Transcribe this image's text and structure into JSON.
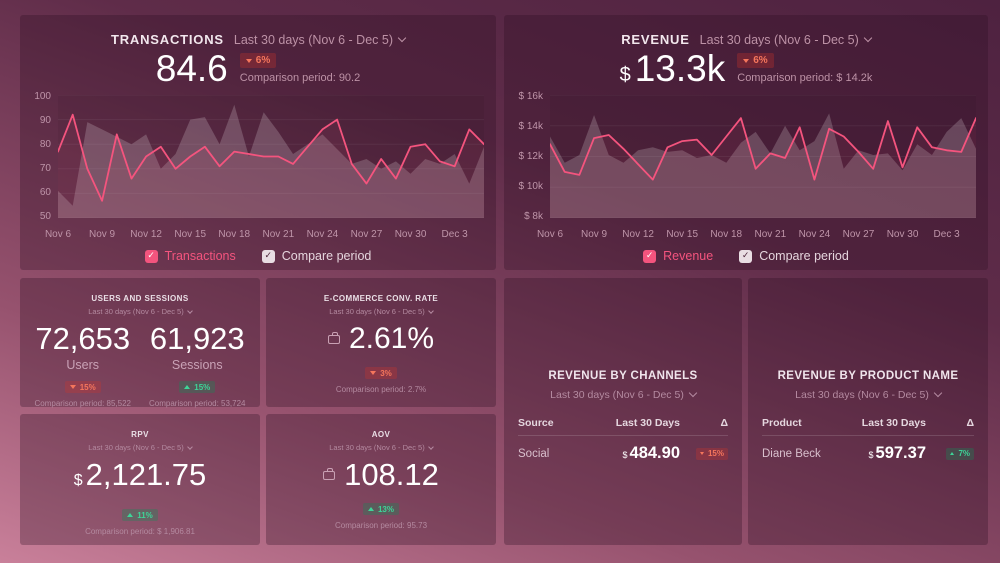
{
  "colors": {
    "line_pink": "#f4547e",
    "compare_fill": "rgba(232,221,229,0.22)",
    "badge_red_text": "#f5765c",
    "badge_green_text": "#3ed598",
    "panel_bg": "rgba(43,13,33,0.30)",
    "background_top": "#4e2240",
    "background_bottom": "#c9809a"
  },
  "panels": {
    "transactions": {
      "title": "TRANSACTIONS",
      "period": "Last 30 days (Nov 6 - Dec 5)",
      "value": "84.6",
      "delta": "6%",
      "delta_dir": "down",
      "comparison": "Comparison period: 90.2",
      "legend": [
        {
          "label": "Transactions"
        },
        {
          "label": "Compare period"
        }
      ]
    },
    "revenue": {
      "title": "REVENUE",
      "period": "Last 30 days (Nov 6 - Dec 5)",
      "currency": "$",
      "value": "13.3k",
      "delta": "6%",
      "delta_dir": "down",
      "comparison": "Comparison period: $ 14.2k",
      "legend": [
        {
          "label": "Revenue"
        },
        {
          "label": "Compare period"
        }
      ]
    },
    "users_sessions": {
      "title": "USERS AND SESSIONS",
      "period": "Last 30 days (Nov 6 - Dec 5)",
      "metrics": [
        {
          "value": "72,653",
          "label": "Users",
          "delta": "15%",
          "delta_dir": "down",
          "comparison": "Comparison period: 85,522"
        },
        {
          "value": "61,923",
          "label": "Sessions",
          "delta": "15%",
          "delta_dir": "up",
          "comparison": "Comparison period: 53,724"
        }
      ]
    },
    "conv_rate": {
      "title": "E-COMMERCE CONV. RATE",
      "period": "Last 30 days (Nov 6 - Dec 5)",
      "value": "2.61%",
      "delta": "3%",
      "delta_dir": "down",
      "comparison": "Comparison period: 2.7%"
    },
    "rpv": {
      "title": "RPV",
      "period": "Last 30 days (Nov 6 - Dec 5)",
      "currency": "$",
      "value": "2,121.75",
      "delta": "11%",
      "delta_dir": "up",
      "comparison": "Comparison period: $ 1,906.81"
    },
    "aov": {
      "title": "AOV",
      "period": "Last 30 days (Nov 6 - Dec 5)",
      "value": "108.12",
      "delta": "13%",
      "delta_dir": "up",
      "comparison": "Comparison period: 95.73"
    },
    "channels": {
      "title": "REVENUE BY CHANNELS",
      "period": "Last 30 days (Nov 6 - Dec 5)",
      "columns": [
        "Source",
        "Last 30 Days",
        "Δ"
      ],
      "rows": [
        {
          "name": "Social",
          "currency": "$",
          "value": "484.90",
          "delta": "15%",
          "delta_dir": "down"
        }
      ]
    },
    "products": {
      "title": "REVENUE BY PRODUCT NAME",
      "period": "Last 30 days (Nov 6 - Dec 5)",
      "columns": [
        "Product",
        "Last 30 Days",
        "Δ"
      ],
      "rows": [
        {
          "name": "Diane Beck",
          "currency": "$",
          "value": "597.37",
          "delta": "7%",
          "delta_dir": "up"
        }
      ]
    }
  },
  "chart_data": [
    {
      "id": "transactions",
      "type": "line",
      "title": "TRANSACTIONS",
      "ylim": [
        50,
        100
      ],
      "yticks": [
        "100",
        "90",
        "80",
        "70",
        "60",
        "50"
      ],
      "xticks": [
        "Nov 6",
        "Nov 9",
        "Nov 12",
        "Nov 15",
        "Nov 18",
        "Nov 21",
        "Nov 24",
        "Nov 27",
        "Nov 30",
        "Dec 3"
      ],
      "x": [
        "Nov 6",
        "Nov 7",
        "Nov 8",
        "Nov 9",
        "Nov 10",
        "Nov 11",
        "Nov 12",
        "Nov 13",
        "Nov 14",
        "Nov 15",
        "Nov 16",
        "Nov 17",
        "Nov 18",
        "Nov 19",
        "Nov 20",
        "Nov 21",
        "Nov 22",
        "Nov 23",
        "Nov 24",
        "Nov 25",
        "Nov 26",
        "Nov 27",
        "Nov 28",
        "Nov 29",
        "Nov 30",
        "Dec 1",
        "Dec 2",
        "Dec 3",
        "Dec 4",
        "Dec 5"
      ],
      "series": [
        {
          "name": "Transactions",
          "values": [
            77,
            92,
            70,
            57,
            84,
            66,
            75,
            79,
            70,
            75,
            79,
            71,
            77,
            76,
            75,
            75,
            72,
            79,
            86,
            90,
            72,
            64,
            74,
            66,
            79,
            80,
            73,
            71,
            86,
            80
          ]
        },
        {
          "name": "Compare period",
          "values": [
            61,
            55,
            89,
            86,
            83,
            80,
            84,
            70,
            76,
            90,
            91,
            80,
            96,
            75,
            93,
            85,
            76,
            80,
            84,
            78,
            72,
            74,
            70,
            73,
            68,
            74,
            72,
            76,
            64,
            79
          ]
        }
      ],
      "legend_position": "bottom",
      "grid": true
    },
    {
      "id": "revenue",
      "type": "line",
      "title": "REVENUE",
      "ylim": [
        8,
        16
      ],
      "yticks": [
        "$ 16k",
        "$ 14k",
        "$ 12k",
        "$ 10k",
        "$ 8k"
      ],
      "xticks": [
        "Nov 6",
        "Nov 9",
        "Nov 12",
        "Nov 15",
        "Nov 18",
        "Nov 21",
        "Nov 24",
        "Nov 27",
        "Nov 30",
        "Dec 3"
      ],
      "x": [
        "Nov 6",
        "Nov 7",
        "Nov 8",
        "Nov 9",
        "Nov 10",
        "Nov 11",
        "Nov 12",
        "Nov 13",
        "Nov 14",
        "Nov 15",
        "Nov 16",
        "Nov 17",
        "Nov 18",
        "Nov 19",
        "Nov 20",
        "Nov 21",
        "Nov 22",
        "Nov 23",
        "Nov 24",
        "Nov 25",
        "Nov 26",
        "Nov 27",
        "Nov 28",
        "Nov 29",
        "Nov 30",
        "Dec 1",
        "Dec 2",
        "Dec 3",
        "Dec 4",
        "Dec 5"
      ],
      "series": [
        {
          "name": "Revenue ($k)",
          "values": [
            12.8,
            11.0,
            10.8,
            13.2,
            13.4,
            12.5,
            11.5,
            10.5,
            12.6,
            13.0,
            13.1,
            12.1,
            13.3,
            14.5,
            11.2,
            12.2,
            11.9,
            13.9,
            10.5,
            13.8,
            13.3,
            12.3,
            11.2,
            14.3,
            11.3,
            13.9,
            12.6,
            12.4,
            12.3,
            14.5
          ]
        },
        {
          "name": "Compare period ($k)",
          "values": [
            13.3,
            11.6,
            12.1,
            14.7,
            12.1,
            11.6,
            12.4,
            12.6,
            12.3,
            12.4,
            11.9,
            12.1,
            11.6,
            12.9,
            13.6,
            12.2,
            14.0,
            12.4,
            13.0,
            14.8,
            11.2,
            12.4,
            12.1,
            12.2,
            11.1,
            12.8,
            12.1,
            13.6,
            14.5,
            12.5
          ]
        }
      ],
      "legend_position": "bottom",
      "grid": true
    }
  ]
}
